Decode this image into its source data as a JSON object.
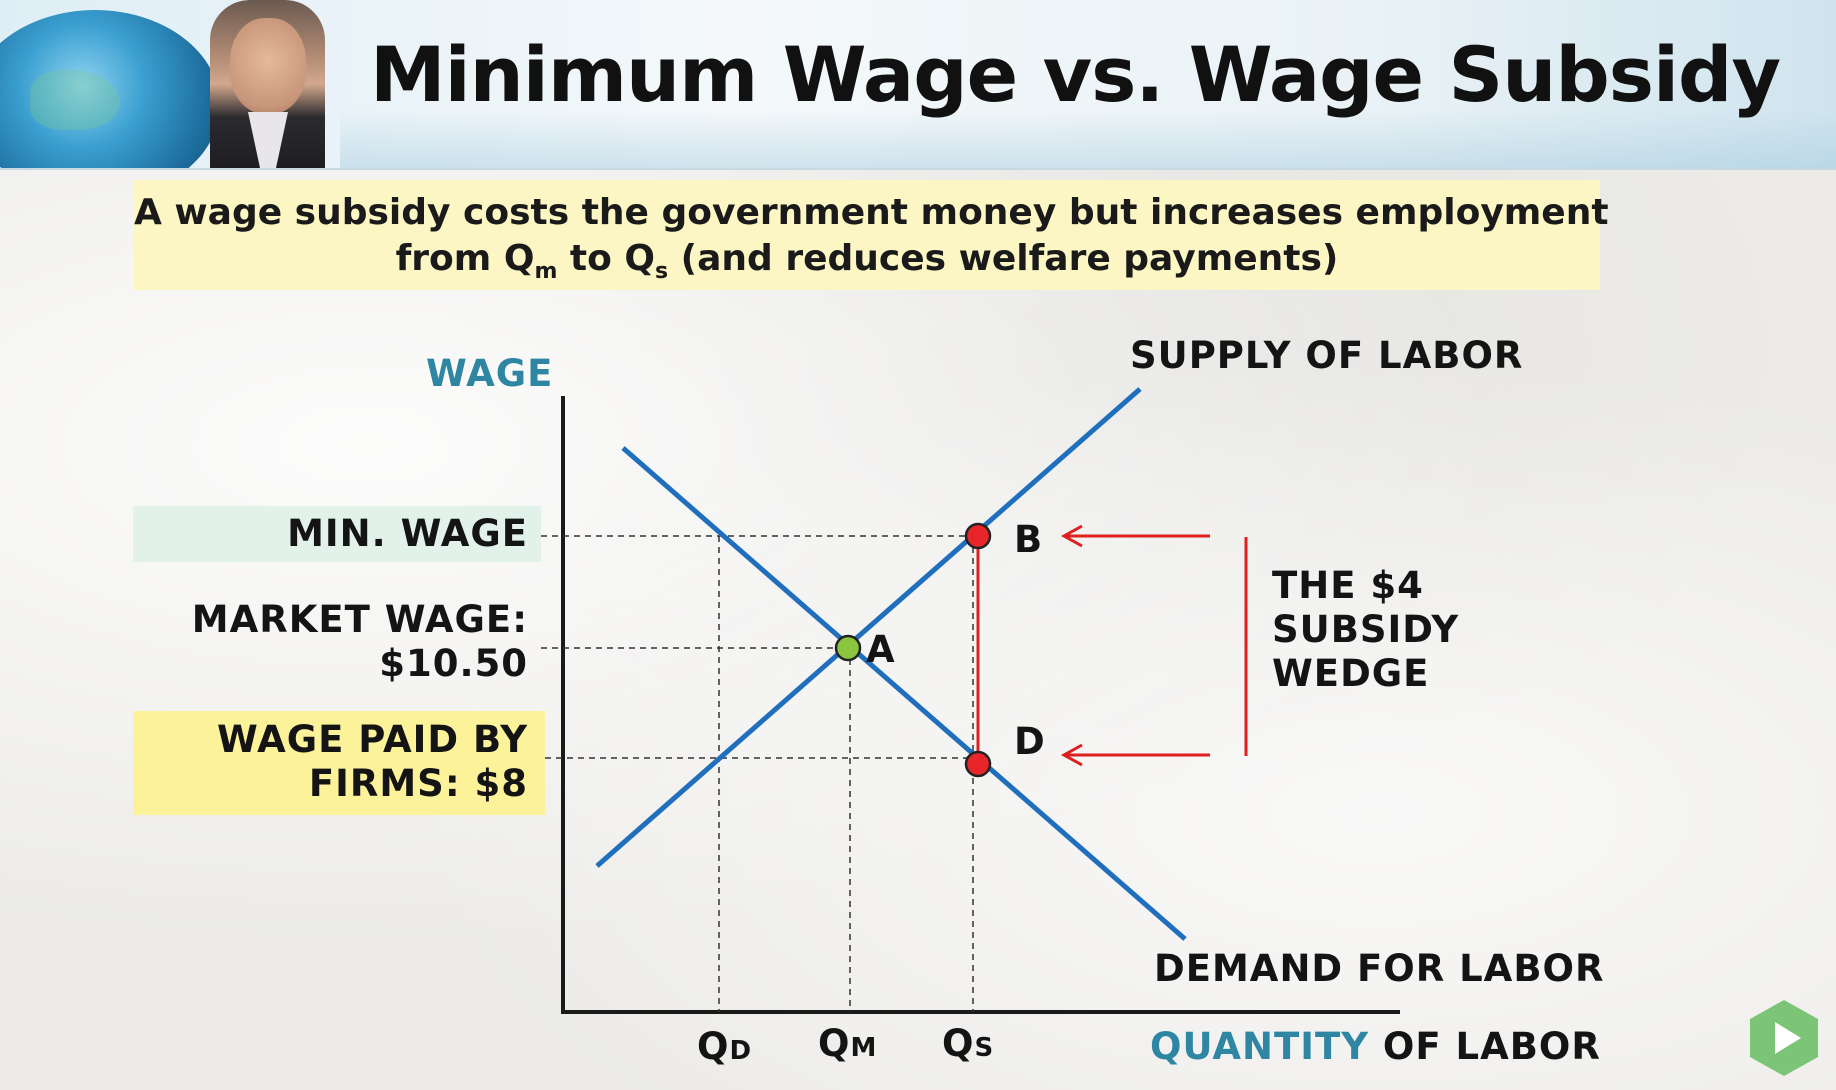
{
  "header": {
    "title": "Minimum Wage vs. Wage Subsidy"
  },
  "caption": {
    "line1": "A wage subsidy costs the government money but increases employment",
    "line2_prefix": "from Q",
    "line2_sub1": "m",
    "line2_mid": " to Q",
    "line2_sub2": "s",
    "line2_suffix": " (and reduces welfare payments)"
  },
  "diagram": {
    "y_axis_label": "WAGE",
    "x_axis_label_blue": "QUANTITY",
    "x_axis_label_rest": "OF LABOR",
    "supply_label": "SUPPLY OF LABOR",
    "demand_label": "DEMAND FOR LABOR",
    "wage_labels": {
      "min_wage": "MIN. WAGE",
      "market_wage_line1": "MARKET WAGE:",
      "market_wage_line2": "$10.50",
      "firms_line1": "WAGE PAID BY",
      "firms_line2": "FIRMS: $8"
    },
    "quantity_labels": {
      "qd": "Q",
      "qd_sub": "D",
      "qm": "Q",
      "qm_sub": "M",
      "qs": "Q",
      "qs_sub": "S"
    },
    "points": {
      "a": "A",
      "b": "B",
      "d": "D"
    },
    "wedge_label": [
      "THE $4",
      "SUBSIDY",
      "WEDGE"
    ],
    "colors": {
      "curve": "#1f6fbd",
      "wedge": "#e02020",
      "point_a": "#8cc63f",
      "points_bd": "#e8262a",
      "axis_label_blue": "#2f86a3",
      "min_wage_highlight": "#e2f1ea",
      "firms_highlight": "#fbf29a",
      "caption_bg": "#fbf6c4"
    }
  },
  "controls": {
    "play_icon": "play-icon"
  }
}
